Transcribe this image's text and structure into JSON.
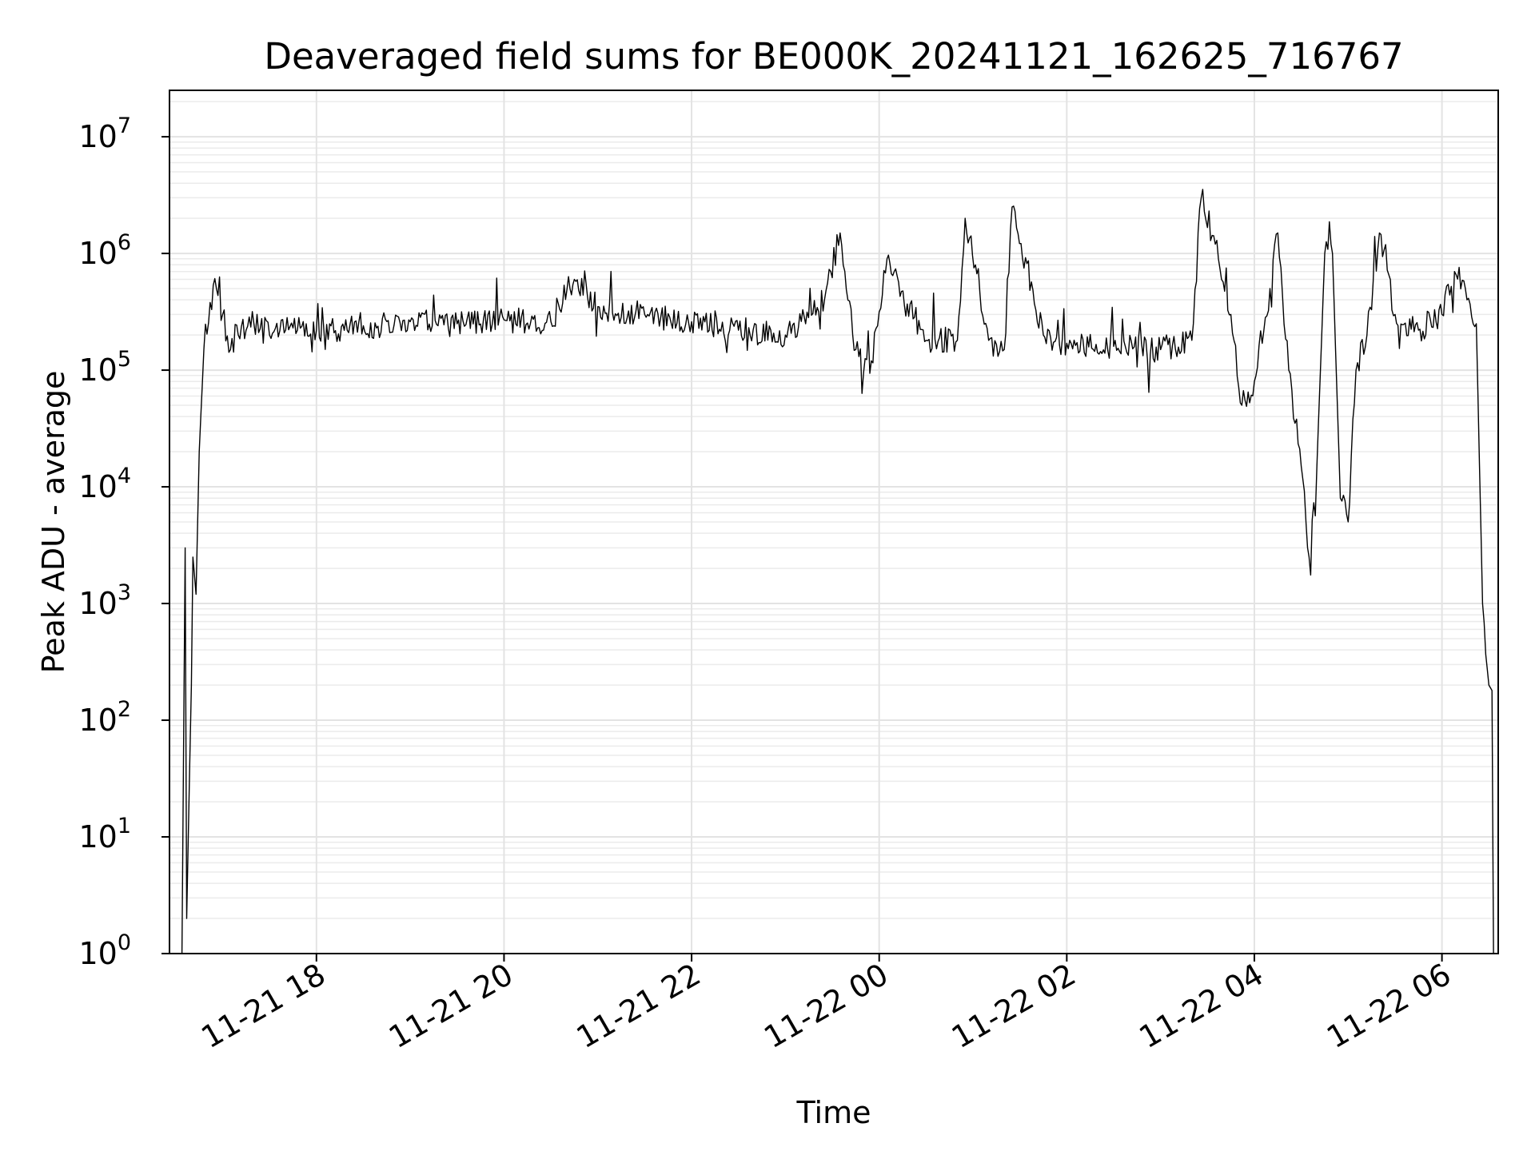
{
  "chart_data": {
    "type": "line",
    "title": "Deaveraged field sums for BE000K_20241121_162625_716767",
    "xlabel": "Time",
    "ylabel": "Peak ADU - average",
    "yscale": "log",
    "ylim": [
      1,
      25000000
    ],
    "xlim": [
      "2024-11-21 16:26",
      "2024-11-22 06:36"
    ],
    "grid": true,
    "series_color": "#000000",
    "x_ticks": [
      {
        "value": "2024-11-21 18:00",
        "label": "11-21 18"
      },
      {
        "value": "2024-11-21 20:00",
        "label": "11-21 20"
      },
      {
        "value": "2024-11-21 22:00",
        "label": "11-21 22"
      },
      {
        "value": "2024-11-22 00:00",
        "label": "11-22 00"
      },
      {
        "value": "2024-11-22 02:00",
        "label": "11-22 02"
      },
      {
        "value": "2024-11-22 04:00",
        "label": "11-22 04"
      },
      {
        "value": "2024-11-22 06:00",
        "label": "11-22 06"
      }
    ],
    "y_ticks": [
      {
        "value": 1,
        "base": "10",
        "exp": "0"
      },
      {
        "value": 10,
        "base": "10",
        "exp": "1"
      },
      {
        "value": 100,
        "base": "10",
        "exp": "2"
      },
      {
        "value": 1000,
        "base": "10",
        "exp": "3"
      },
      {
        "value": 10000,
        "base": "10",
        "exp": "4"
      },
      {
        "value": 100000,
        "base": "10",
        "exp": "5"
      },
      {
        "value": 1000000,
        "base": "10",
        "exp": "6"
      },
      {
        "value": 10000000,
        "base": "10",
        "exp": "7"
      }
    ],
    "series": [
      {
        "x": [
          "2024-11-21 16:34",
          "2024-11-21 16:36",
          "2024-11-21 16:37",
          "2024-11-21 16:38",
          "2024-11-21 16:40",
          "2024-11-21 16:41",
          "2024-11-21 16:43",
          "2024-11-21 16:45",
          "2024-11-21 16:48",
          "2024-11-21 16:52",
          "2024-11-21 16:56",
          "2024-11-21 17:00",
          "2024-11-21 17:05",
          "2024-11-21 17:10",
          "2024-11-21 17:15",
          "2024-11-21 17:20",
          "2024-11-21 17:30",
          "2024-11-21 17:45",
          "2024-11-21 18:00",
          "2024-11-21 18:30",
          "2024-11-21 19:00",
          "2024-11-21 19:30",
          "2024-11-21 20:00",
          "2024-11-21 20:30",
          "2024-11-21 20:45",
          "2024-11-21 21:00",
          "2024-11-21 21:30",
          "2024-11-21 22:00",
          "2024-11-21 22:30",
          "2024-11-21 23:00",
          "2024-11-21 23:25",
          "2024-11-21 23:35",
          "2024-11-21 23:45",
          "2024-11-21 23:55",
          "2024-11-22 00:05",
          "2024-11-22 00:30",
          "2024-11-22 00:50",
          "2024-11-22 00:55",
          "2024-11-22 01:10",
          "2024-11-22 01:20",
          "2024-11-22 01:25",
          "2024-11-22 01:45",
          "2024-11-22 02:00",
          "2024-11-22 02:30",
          "2024-11-22 03:00",
          "2024-11-22 03:20",
          "2024-11-22 03:26",
          "2024-11-22 03:35",
          "2024-11-22 03:45",
          "2024-11-22 03:52",
          "2024-11-22 04:00",
          "2024-11-22 04:10",
          "2024-11-22 04:15",
          "2024-11-22 04:22",
          "2024-11-22 04:30",
          "2024-11-22 04:35",
          "2024-11-22 04:40",
          "2024-11-22 04:45",
          "2024-11-22 04:50",
          "2024-11-22 04:55",
          "2024-11-22 05:00",
          "2024-11-22 05:05",
          "2024-11-22 05:12",
          "2024-11-22 05:20",
          "2024-11-22 05:30",
          "2024-11-22 05:45",
          "2024-11-22 06:00",
          "2024-11-22 06:08",
          "2024-11-22 06:15",
          "2024-11-22 06:22",
          "2024-11-22 06:26",
          "2024-11-22 06:30",
          "2024-11-22 06:32",
          "2024-11-22 06:33"
        ],
        "values": [
          1,
          3000,
          2,
          10,
          200,
          2500,
          1200,
          20000,
          150000,
          380000,
          500000,
          300000,
          150000,
          200000,
          220000,
          250000,
          200000,
          230000,
          220000,
          240000,
          260000,
          250000,
          270000,
          260000,
          600000,
          350000,
          300000,
          260000,
          220000,
          200000,
          400000,
          1500000,
          150000,
          120000,
          900000,
          180000,
          180000,
          2000000,
          180000,
          150000,
          2500000,
          200000,
          170000,
          160000,
          150000,
          180000,
          3000000,
          1200000,
          300000,
          50000,
          80000,
          500000,
          1500000,
          100000,
          15000,
          2500,
          15000,
          1000000,
          1000000,
          8000,
          5000,
          100000,
          200000,
          1500000,
          300000,
          220000,
          300000,
          700000,
          500000,
          250000,
          1000,
          200,
          180,
          1
        ]
      }
    ]
  }
}
